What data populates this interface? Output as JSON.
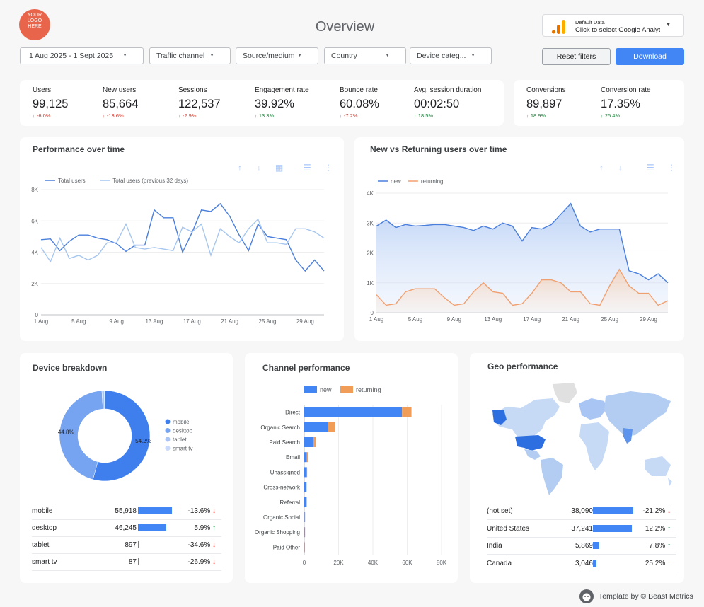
{
  "header": {
    "logo_lines": [
      "YOUR",
      "LOGO",
      "HERE"
    ],
    "title": "Overview",
    "data_source": {
      "label": "Default Data",
      "value": "Click to select Google Analytics"
    },
    "reset_label": "Reset filters",
    "download_label": "Download"
  },
  "filters": [
    "1 Aug 2025 - 1 Sept 2025",
    "Traffic channel",
    "Source/medium",
    "Country",
    "Device categ..."
  ],
  "kpis": [
    {
      "label": "Users",
      "value": "99,125",
      "change": "-6.0%",
      "dir": "down"
    },
    {
      "label": "New users",
      "value": "85,664",
      "change": "-13.6%",
      "dir": "down"
    },
    {
      "label": "Sessions",
      "value": "122,537",
      "change": "-2.9%",
      "dir": "down"
    },
    {
      "label": "Engagement rate",
      "value": "39.92%",
      "change": "13.3%",
      "dir": "up"
    },
    {
      "label": "Bounce rate",
      "value": "60.08%",
      "change": "-7.2%",
      "dir": "down"
    },
    {
      "label": "Avg. session duration",
      "value": "00:02:50",
      "change": "18.5%",
      "dir": "up"
    }
  ],
  "kpis2": [
    {
      "label": "Conversions",
      "value": "89,897",
      "change": "18.9%",
      "dir": "up"
    },
    {
      "label": "Conversion rate",
      "value": "17.35%",
      "change": "25.4%",
      "dir": "up"
    }
  ],
  "perf": {
    "title": "Performance over time",
    "chart_data": {
      "type": "line",
      "x": [
        "1 Aug",
        "2 Aug",
        "3 Aug",
        "4 Aug",
        "5 Aug",
        "6 Aug",
        "7 Aug",
        "8 Aug",
        "9 Aug",
        "10 Aug",
        "11 Aug",
        "12 Aug",
        "13 Aug",
        "14 Aug",
        "15 Aug",
        "16 Aug",
        "17 Aug",
        "18 Aug",
        "19 Aug",
        "20 Aug",
        "21 Aug",
        "22 Aug",
        "23 Aug",
        "24 Aug",
        "25 Aug",
        "26 Aug",
        "27 Aug",
        "28 Aug",
        "29 Aug",
        "30 Aug",
        "31 Aug"
      ],
      "xticks": [
        "1 Aug",
        "5 Aug",
        "9 Aug",
        "13 Aug",
        "17 Aug",
        "21 Aug",
        "25 Aug",
        "29 Aug"
      ],
      "yticks": [
        "0",
        "2K",
        "4K",
        "6K",
        "8K"
      ],
      "ylim": [
        0,
        8000
      ],
      "series": [
        {
          "name": "Total users",
          "color": "#4a7fdc",
          "values": [
            4800,
            4850,
            4100,
            4700,
            5100,
            5100,
            4900,
            4800,
            4550,
            4050,
            4450,
            4450,
            6700,
            6200,
            6200,
            4000,
            5250,
            6700,
            6600,
            7100,
            6300,
            5100,
            4100,
            5800,
            5000,
            4900,
            4800,
            3500,
            2800,
            3500,
            2800
          ]
        },
        {
          "name": "Total users (previous 32 days)",
          "color": "#a6c6ef",
          "values": [
            4300,
            3400,
            4900,
            3600,
            3800,
            3500,
            3800,
            4600,
            4600,
            5800,
            4300,
            4200,
            4300,
            4200,
            4100,
            5600,
            5300,
            5800,
            3800,
            5500,
            5000,
            4600,
            5500,
            6100,
            4600,
            4600,
            4500,
            5500,
            5500,
            5300,
            4900
          ]
        }
      ]
    }
  },
  "nvr": {
    "title": "New vs Returning users over time",
    "chart_data": {
      "type": "area",
      "x": [
        "1 Aug",
        "2 Aug",
        "3 Aug",
        "4 Aug",
        "5 Aug",
        "6 Aug",
        "7 Aug",
        "8 Aug",
        "9 Aug",
        "10 Aug",
        "11 Aug",
        "12 Aug",
        "13 Aug",
        "14 Aug",
        "15 Aug",
        "16 Aug",
        "17 Aug",
        "18 Aug",
        "19 Aug",
        "20 Aug",
        "21 Aug",
        "22 Aug",
        "23 Aug",
        "24 Aug",
        "25 Aug",
        "26 Aug",
        "27 Aug",
        "28 Aug",
        "29 Aug",
        "30 Aug",
        "31 Aug"
      ],
      "xticks": [
        "1 Aug",
        "5 Aug",
        "9 Aug",
        "13 Aug",
        "17 Aug",
        "21 Aug",
        "25 Aug",
        "29 Aug"
      ],
      "yticks": [
        "0",
        "1K",
        "2K",
        "3K",
        "4K"
      ],
      "ylim": [
        0,
        4000
      ],
      "series": [
        {
          "name": "new",
          "color": "#4a7fdc",
          "values": [
            2900,
            3100,
            2850,
            2950,
            2900,
            2920,
            2950,
            2950,
            2900,
            2850,
            2750,
            2900,
            2800,
            3000,
            2900,
            2400,
            2850,
            2800,
            2950,
            3300,
            3650,
            2900,
            2700,
            2800,
            2800,
            2800,
            1400,
            1300,
            1100,
            1300,
            1000
          ]
        },
        {
          "name": "returning",
          "color": "#f0a070",
          "values": [
            600,
            250,
            300,
            700,
            800,
            800,
            800,
            500,
            250,
            300,
            700,
            1000,
            700,
            650,
            250,
            300,
            650,
            1100,
            1100,
            1000,
            700,
            700,
            300,
            250,
            900,
            1450,
            900,
            650,
            650,
            250,
            400
          ]
        }
      ]
    }
  },
  "device": {
    "title": "Device breakdown",
    "chart_data": {
      "type": "pie",
      "labels": [
        "mobile",
        "desktop",
        "tablet",
        "smart tv"
      ],
      "values": [
        54.2,
        44.8,
        0.9,
        0.1
      ],
      "colors": [
        "#3f7fed",
        "#77a4f0",
        "#a9c5f3",
        "#c9dafa"
      ],
      "slice_labels": [
        "54.2%",
        "44.8%",
        "",
        ""
      ]
    },
    "rows": [
      {
        "name": "mobile",
        "value": "55,918",
        "bar": 1.0,
        "change": "-13.6%",
        "dir": "down"
      },
      {
        "name": "desktop",
        "value": "46,245",
        "bar": 0.83,
        "change": "5.9%",
        "dir": "up"
      },
      {
        "name": "tablet",
        "value": "897",
        "bar": 0.02,
        "change": "-34.6%",
        "dir": "down"
      },
      {
        "name": "smart tv",
        "value": "87",
        "bar": 0.005,
        "change": "-26.9%",
        "dir": "down"
      }
    ]
  },
  "channel": {
    "title": "Channel performance",
    "chart_data": {
      "type": "bar",
      "orientation": "horizontal",
      "stacked": true,
      "categories": [
        "Direct",
        "Organic Search",
        "Paid Search",
        "Email",
        "Unassigned",
        "Cross-network",
        "Referral",
        "Organic Social",
        "Organic Shopping",
        "Paid Other"
      ],
      "xticks": [
        "0",
        "20K",
        "40K",
        "60K",
        "80K"
      ],
      "xlim": [
        0,
        80000
      ],
      "series": [
        {
          "name": "new",
          "color": "#4285f4",
          "values": [
            57000,
            14000,
            5500,
            1500,
            1500,
            1200,
            1200,
            300,
            200,
            150
          ]
        },
        {
          "name": "returning",
          "color": "#f19d57",
          "values": [
            5500,
            4000,
            1200,
            800,
            200,
            200,
            300,
            100,
            300,
            50
          ]
        }
      ]
    }
  },
  "geo": {
    "title": "Geo performance",
    "rows": [
      {
        "name": "(not set)",
        "value": "38,090",
        "bar": 1.0,
        "change": "-21.2%",
        "dir": "down"
      },
      {
        "name": "United States",
        "value": "37,241",
        "bar": 0.98,
        "change": "12.2%",
        "dir": "up"
      },
      {
        "name": "India",
        "value": "5,869",
        "bar": 0.16,
        "change": "7.8%",
        "dir": "up"
      },
      {
        "name": "Canada",
        "value": "3,046",
        "bar": 0.08,
        "change": "25.2%",
        "dir": "up"
      }
    ]
  },
  "footer": {
    "text": "Template by © Beast Metrics"
  }
}
